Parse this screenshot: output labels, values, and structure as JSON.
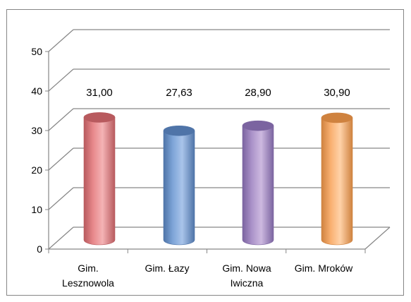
{
  "chart_data": {
    "type": "bar",
    "style": "3d-cylinder",
    "categories": [
      [
        "Gim.",
        "Lesznowola"
      ],
      [
        "Gim. Łazy"
      ],
      [
        "Gim. Nowa",
        "Iwiczna"
      ],
      [
        "Gim. Mroków"
      ]
    ],
    "values": [
      31.0,
      27.63,
      28.9,
      30.9
    ],
    "data_labels": [
      "31,00",
      "27,63",
      "28,90",
      "30,90"
    ],
    "ylim": [
      0,
      50
    ],
    "yticks": [
      "0",
      "10",
      "20",
      "30",
      "40",
      "50"
    ],
    "grid": true,
    "legend": "none",
    "colors": {
      "bars": [
        "#e8898c",
        "#7ea5d8",
        "#ab92c9",
        "#f9b071"
      ],
      "bars_dark": [
        "#b85a5e",
        "#4f74a8",
        "#7b64a0",
        "#cf823f"
      ],
      "bars_light": [
        "#f4b3b5",
        "#a9c4ea",
        "#cdb9e0",
        "#ffd2a8"
      ],
      "gridline": "#868686",
      "frame": "#868686"
    }
  }
}
